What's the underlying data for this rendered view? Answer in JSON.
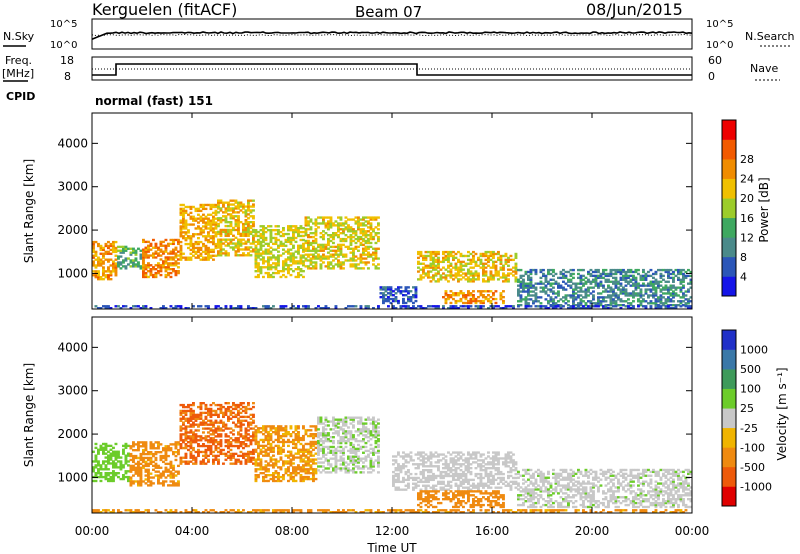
{
  "header": {
    "station": "Kerguelen (fitACF)",
    "beam": "Beam 07",
    "date": "08/Jun/2015"
  },
  "noise_panel": {
    "left_label": "N.Sky",
    "right_label": "N.Search",
    "y_ticks": [
      "10^5",
      "10^0"
    ]
  },
  "freq_panel": {
    "left_label_line1": "Freq.",
    "left_label_line2": "[MHz]",
    "left_ticks": [
      "18",
      "8"
    ],
    "right_label": "Nave",
    "right_ticks": [
      "60",
      "0"
    ],
    "cpid_label": "CPID",
    "mode_label": "normal (fast) 151"
  },
  "colors": {
    "power_scale": [
      "#1515e8",
      "#2b56b8",
      "#4a8a8a",
      "#3ea860",
      "#9ccc2a",
      "#f0c000",
      "#f08c00",
      "#f25a00",
      "#ee0000"
    ],
    "velocity_scale": [
      "#2030c8",
      "#3a78a8",
      "#3e9a5a",
      "#6ccc2a",
      "#c8c8c8",
      "#f0b400",
      "#ef8a10",
      "#ee5a0a",
      "#e00000"
    ]
  },
  "chart_data": [
    {
      "type": "heatmap",
      "title": "",
      "xlabel": "",
      "ylabel": "Slant Range [km]",
      "x_ticks": [
        "00:00",
        "04:00",
        "08:00",
        "12:00",
        "16:00",
        "20:00",
        "00:00"
      ],
      "xlim_hours": [
        0,
        24
      ],
      "y_ticks": [
        1000,
        2000,
        3000,
        4000
      ],
      "ylim": [
        180,
        4700
      ],
      "colorbar": {
        "label": "Power [dB]",
        "ticks": [
          4,
          8,
          12,
          16,
          20,
          24,
          28
        ]
      },
      "regions": [
        {
          "t": [
            0.0,
            1.0
          ],
          "r": [
            850,
            1750
          ],
          "value": 25
        },
        {
          "t": [
            1.0,
            2.0
          ],
          "r": [
            1100,
            1600
          ],
          "value": 14
        },
        {
          "t": [
            2.0,
            3.5
          ],
          "r": [
            900,
            1800
          ],
          "value": 27
        },
        {
          "t": [
            3.5,
            5.0
          ],
          "r": [
            1300,
            2600
          ],
          "value": 24
        },
        {
          "t": [
            5.0,
            6.5
          ],
          "r": [
            1400,
            2700
          ],
          "value": 22
        },
        {
          "t": [
            6.5,
            8.5
          ],
          "r": [
            900,
            2100
          ],
          "value": 20
        },
        {
          "t": [
            8.5,
            11.5
          ],
          "r": [
            1100,
            2300
          ],
          "value": 21
        },
        {
          "t": [
            11.5,
            13.0
          ],
          "r": [
            300,
            700
          ],
          "value": 6
        },
        {
          "t": [
            13.0,
            17.0
          ],
          "r": [
            800,
            1500
          ],
          "value": 22
        },
        {
          "t": [
            14.0,
            16.5
          ],
          "r": [
            300,
            600
          ],
          "value": 26
        },
        {
          "t": [
            17.0,
            24.0
          ],
          "r": [
            250,
            1100
          ],
          "value": 10
        },
        {
          "t": [
            0.0,
            24.0
          ],
          "r": [
            180,
            260
          ],
          "value": 5
        }
      ]
    },
    {
      "type": "heatmap",
      "title": "",
      "xlabel": "Time UT",
      "ylabel": "Slant Range [km]",
      "x_ticks": [
        "00:00",
        "04:00",
        "08:00",
        "12:00",
        "16:00",
        "20:00",
        "00:00"
      ],
      "xlim_hours": [
        0,
        24
      ],
      "y_ticks": [
        1000,
        2000,
        3000,
        4000
      ],
      "ylim": [
        180,
        4700
      ],
      "colorbar": {
        "label": "Velocity [m s⁻¹]",
        "ticks": [
          1000,
          500,
          100,
          25,
          -25,
          -100,
          -500,
          -1000
        ]
      },
      "regions": [
        {
          "t": [
            0.0,
            1.5
          ],
          "r": [
            900,
            1800
          ],
          "value": 60
        },
        {
          "t": [
            1.5,
            3.5
          ],
          "r": [
            800,
            1800
          ],
          "value": -150
        },
        {
          "t": [
            3.5,
            6.5
          ],
          "r": [
            1300,
            2700
          ],
          "value": -600
        },
        {
          "t": [
            6.5,
            9.0
          ],
          "r": [
            900,
            2200
          ],
          "value": -120
        },
        {
          "t": [
            9.0,
            11.5
          ],
          "r": [
            1100,
            2400
          ],
          "value": 15
        },
        {
          "t": [
            12.0,
            17.0
          ],
          "r": [
            700,
            1600
          ],
          "value": 5
        },
        {
          "t": [
            13.0,
            16.5
          ],
          "r": [
            300,
            700
          ],
          "value": -200
        },
        {
          "t": [
            17.0,
            24.0
          ],
          "r": [
            300,
            1200
          ],
          "value": 10
        },
        {
          "t": [
            0.0,
            24.0
          ],
          "r": [
            180,
            260
          ],
          "value": -150
        }
      ]
    }
  ]
}
